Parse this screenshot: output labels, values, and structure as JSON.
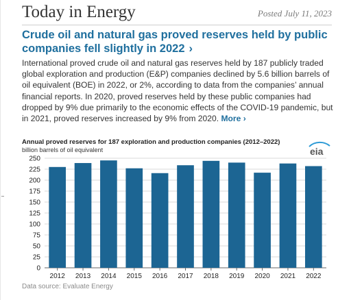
{
  "masthead": {
    "title": "Today in Energy",
    "posted": "Posted July 11, 2023"
  },
  "article": {
    "headline": "Crude oil and natural gas proved reserves held by public companies fell slightly in 2022",
    "headline_chevron": "›",
    "body": "International proved crude oil and natural gas reserves held by 187 publicly traded global exploration and production (E&P) companies declined by 5.6 billion barrels of oil equivalent (BOE) in 2022, or 2%, according to data from the companies’ annual financial reports. In 2020, proved reserves held by these public companies had dropped by 9% due primarily to the economic effects of the COVID-19 pandemic, but in 2021, proved reserves increased by 9% from 2020.",
    "more_label": "More ›"
  },
  "logo": {
    "text": "eia"
  },
  "footer": {
    "source": "Data source: Evaluate Energy"
  },
  "colors": {
    "bar": "#1c6593",
    "headline": "#1f6f9e",
    "grid": "#d9d9d9",
    "axis": "#666666"
  },
  "chart_data": {
    "type": "bar",
    "title": "Annual proved reserves for 187 exploration and production companies (2012–2022)",
    "unit_label": "billion barrels of oil equivalent",
    "categories": [
      "2012",
      "2013",
      "2014",
      "2015",
      "2016",
      "2017",
      "2018",
      "2019",
      "2020",
      "2021",
      "2022"
    ],
    "values": [
      230,
      239,
      245,
      227,
      216,
      234,
      244,
      240,
      217,
      238,
      232
    ],
    "ylim": [
      0,
      250
    ],
    "yticks": [
      0,
      25,
      50,
      75,
      100,
      125,
      150,
      175,
      200,
      225,
      250
    ],
    "grid": true,
    "legend": "none"
  }
}
